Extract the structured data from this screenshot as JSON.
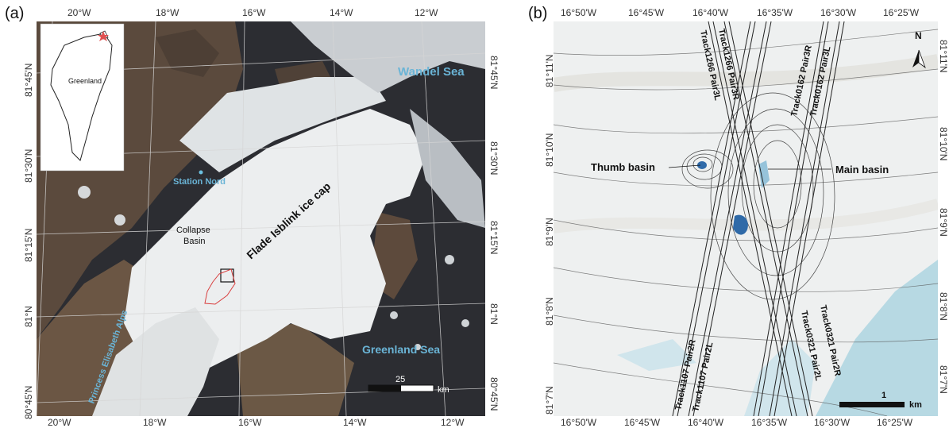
{
  "panel_a": {
    "label": "(a)",
    "top_lon": [
      "20°W",
      "18°W",
      "16°W",
      "14°W",
      "12°W"
    ],
    "bottom_lon": [
      "20°W",
      "18°W",
      "16°W",
      "14°W",
      "12°W"
    ],
    "left_lat": [
      "81°45'N",
      "81°30'N",
      "81°15'N",
      "81°N",
      "80°45'N"
    ],
    "right_lat": [
      "81°45'N",
      "81°30'N",
      "81°15'N",
      "81°N",
      "80°45'N"
    ],
    "inset_label": "Greenland",
    "labels": {
      "wandel_sea": "Wandel Sea",
      "greenland_sea": "Greenland Sea",
      "station_nord": "Station Nord",
      "ice_cap": "Flade Isblink ice cap",
      "collapse_line1": "Collapse",
      "collapse_line2": "Basin",
      "alps": "Princess Elisabeth Alps"
    },
    "scalebar_value": "25",
    "scalebar_unit": "km"
  },
  "panel_b": {
    "label": "(b)",
    "top_lon": [
      "16°50'W",
      "16°45'W",
      "16°40'W",
      "16°35'W",
      "16°30'W",
      "16°25'W"
    ],
    "bottom_lon": [
      "16°50'W",
      "16°45'W",
      "16°40'W",
      "16°35'W",
      "16°30'W",
      "16°25'W"
    ],
    "left_lat": [
      "81°11'N",
      "81°10'N",
      "81°9'N",
      "81°8'N",
      "81°7'N"
    ],
    "right_lat": [
      "81°11'N",
      "81°10'N",
      "81°9'N",
      "81°8'N",
      "81°7'N"
    ],
    "north": "N",
    "tracks": {
      "t1266_3l": "Track1266 Pair3L",
      "t1266_3r": "Track1266 Pair3R",
      "t0162_3r": "Track0162 Pair3R",
      "t0162_3l": "Track0162 Pair3L",
      "t1107_2r": "Track1107 Pair2R",
      "t1107_2l": "Track1107 Pair2L",
      "t0321_2l": "Track0321 Pair2L",
      "t0321_2r": "Track0321 Pair2R"
    },
    "thumb_basin": "Thumb basin",
    "main_basin": "Main basin",
    "scalebar_value": "1",
    "scalebar_unit": "km"
  }
}
